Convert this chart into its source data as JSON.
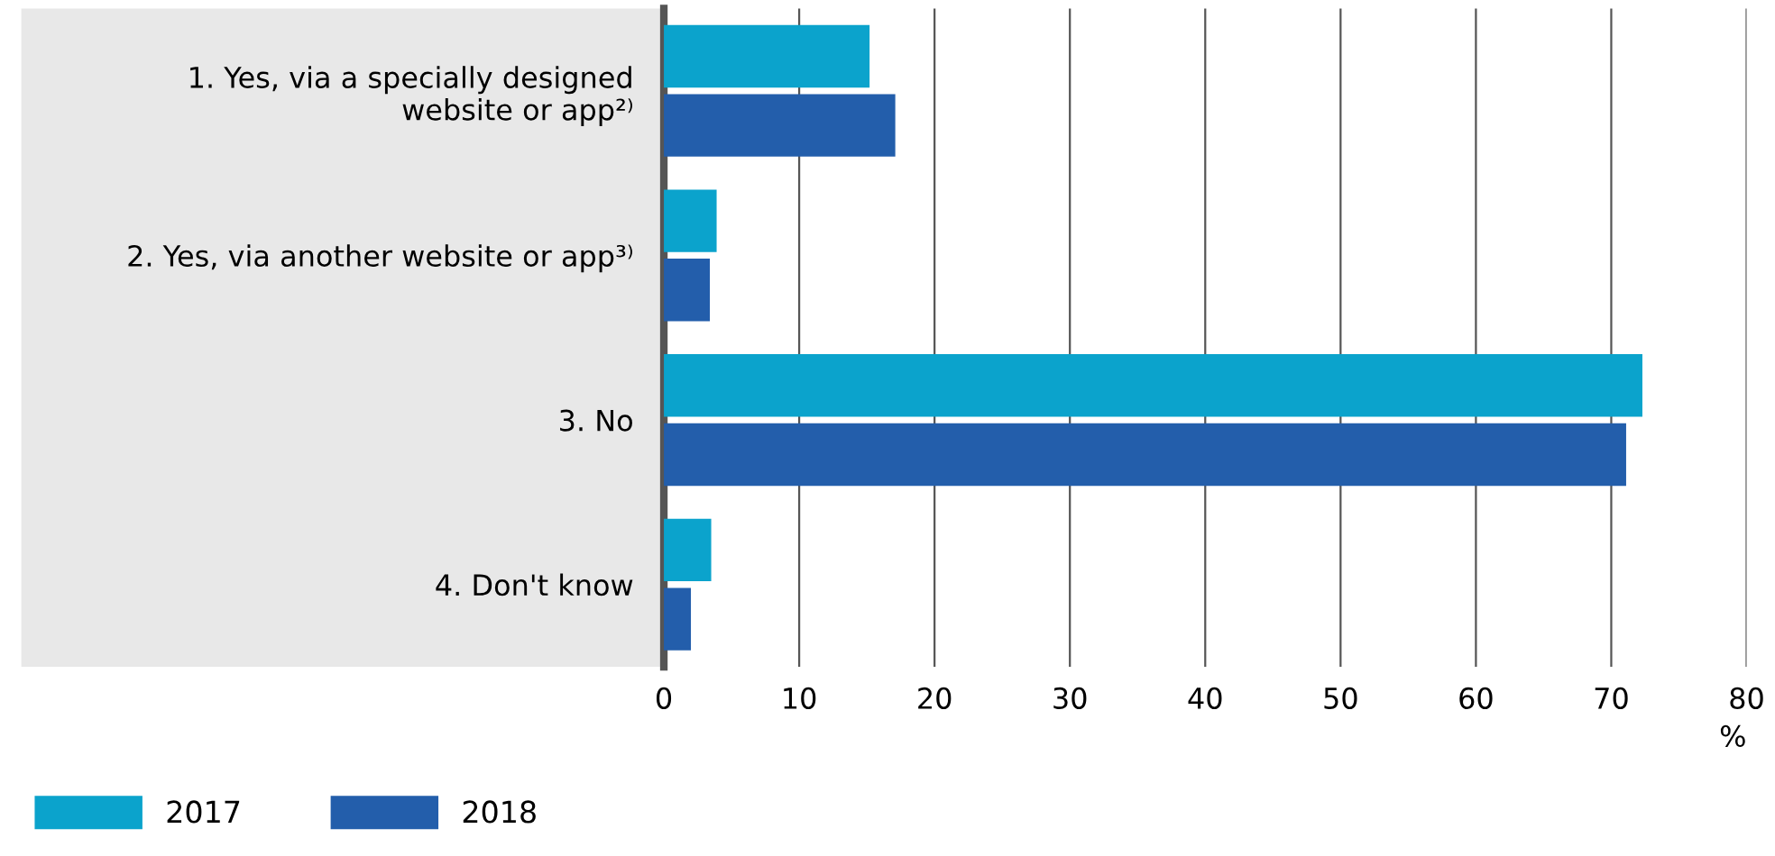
{
  "chart_data": {
    "type": "bar",
    "orientation": "horizontal",
    "categories": [
      "1. Yes, via a specially designed\nwebsite or app²⁾",
      "2. Yes, via another website or app³⁾",
      "3. No",
      "4. Don't know"
    ],
    "series": [
      {
        "name": "2017",
        "color": "#0ba3cc",
        "values": [
          15.2,
          3.9,
          72.3,
          3.5
        ]
      },
      {
        "name": "2018",
        "color": "#235eab",
        "values": [
          17.1,
          3.4,
          71.1,
          2.0
        ]
      }
    ],
    "xlim": [
      0,
      80
    ],
    "xticks": [
      0,
      10,
      20,
      30,
      40,
      50,
      60,
      70,
      80
    ],
    "xlabel": "%",
    "grid": "x",
    "legend": "bottom left"
  }
}
